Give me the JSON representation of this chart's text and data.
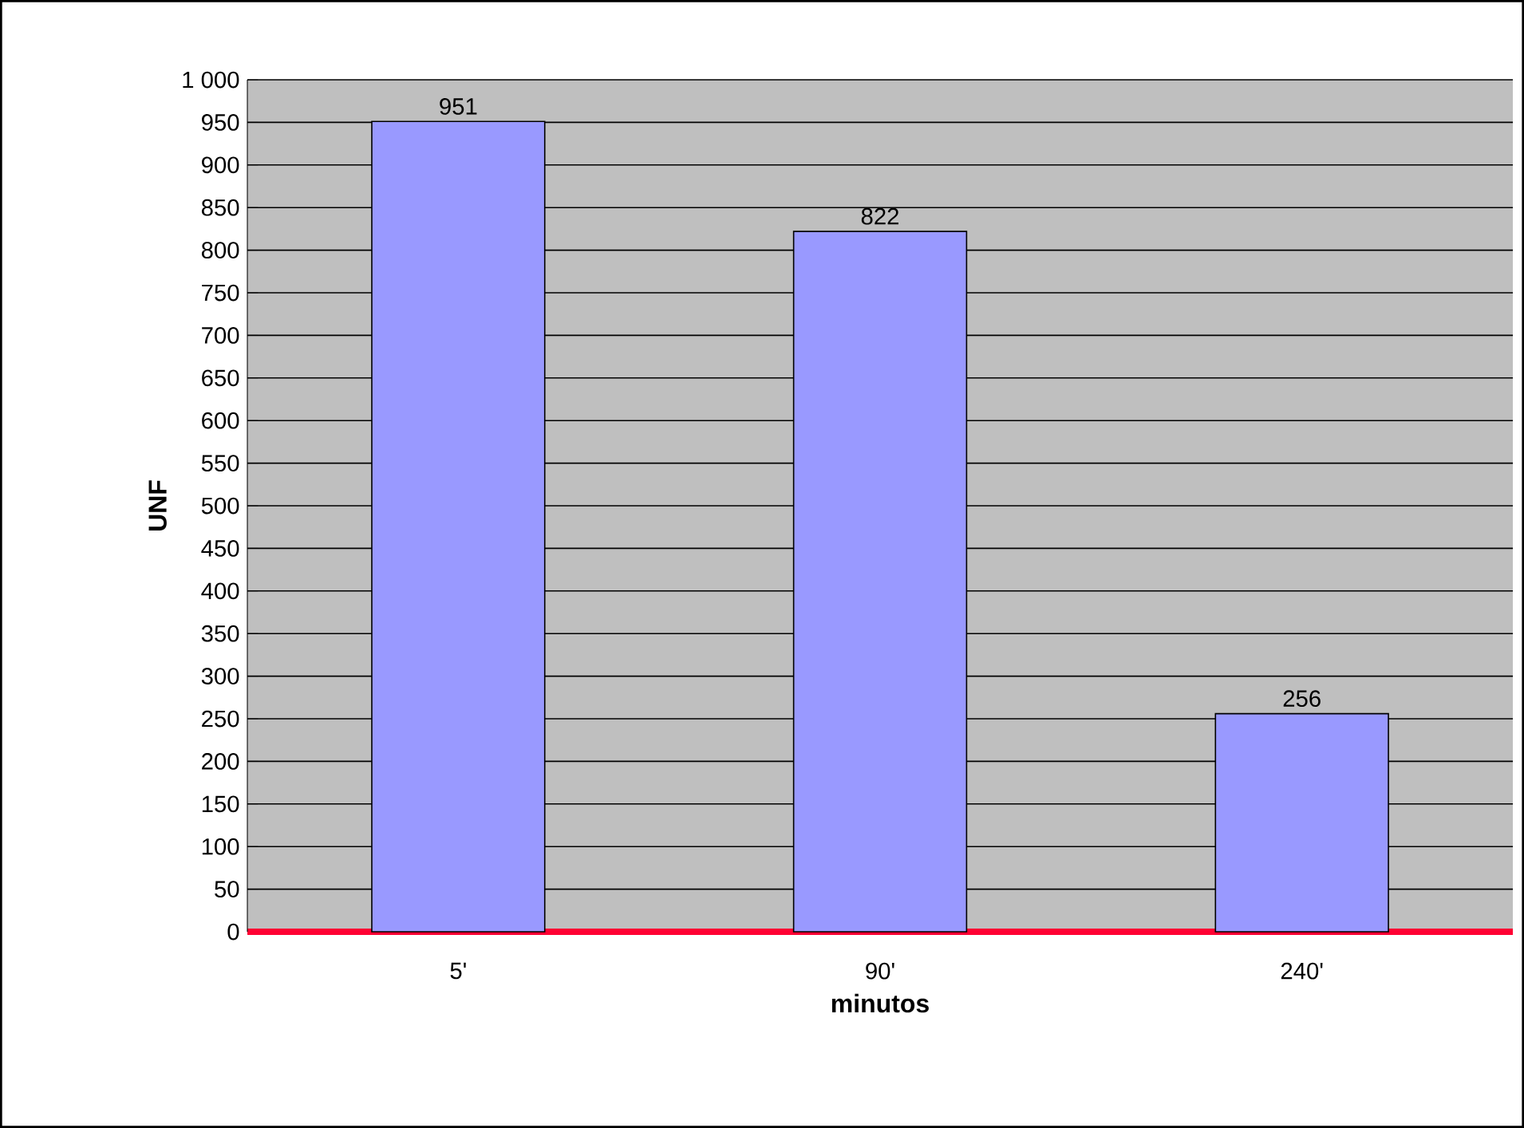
{
  "chart_data": {
    "type": "bar",
    "xlabel": "minutos",
    "ylabel": "UNF",
    "categories": [
      "5'",
      "90'",
      "240'"
    ],
    "values": [
      951,
      822,
      256
    ],
    "color": "#9999ff",
    "data_labels": true,
    "ylim": [
      0,
      1000
    ],
    "yticks": [
      0,
      50,
      100,
      150,
      200,
      250,
      300,
      350,
      400,
      450,
      500,
      550,
      600,
      650,
      700,
      750,
      800,
      850,
      900,
      950,
      {
        "value": 1000,
        "label": "1 000"
      }
    ],
    "grid": "y"
  }
}
